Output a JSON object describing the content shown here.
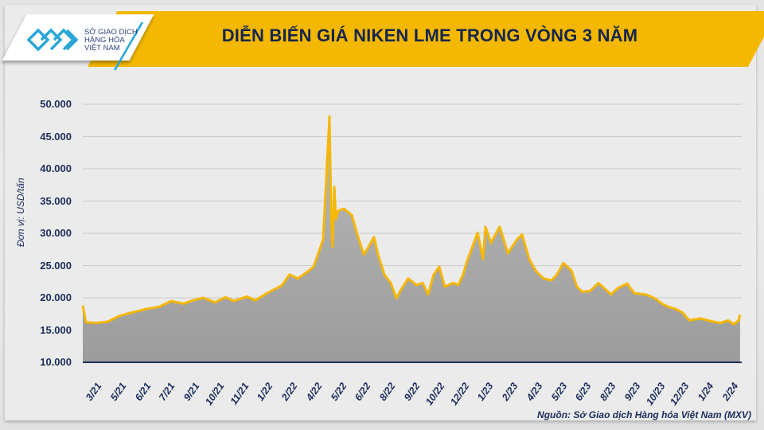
{
  "header": {
    "logo_text": [
      "SỞ GIAO DỊCH",
      "HÀNG HÓA",
      "VIỆT NAM"
    ],
    "title": "DIỄN BIẾN GIÁ NIKEN LME TRONG VÒNG 3 NĂM"
  },
  "source": "Nguồn: Sở Giao dịch Hàng hóa Việt Nam (MXV)",
  "colors": {
    "line": "#F5B700",
    "banner": "#F4B800",
    "text": "#1B2D5C",
    "axis": "#1B2D5C"
  },
  "chart_data": {
    "type": "line",
    "title": "DIỄN BIẾN GIÁ NIKEN LME TRONG VÒNG 3 NĂM",
    "ylabel": "Đơn vị: USD/tấn",
    "xlabel": "",
    "ylim": [
      10000,
      50000
    ],
    "yticks": [
      "10.000",
      "15.000",
      "20.000",
      "25.000",
      "30.000",
      "35.000",
      "40.000",
      "45.000",
      "50.000"
    ],
    "ytick_values": [
      10000,
      15000,
      20000,
      25000,
      30000,
      35000,
      40000,
      45000,
      50000
    ],
    "xticks": [
      "3/21",
      "5/21",
      "6/21",
      "7/21",
      "9/21",
      "10/21",
      "11/21",
      "1/22",
      "2/22",
      "4/22",
      "5/22",
      "6/22",
      "8/22",
      "9/22",
      "10/22",
      "12/22",
      "1/23",
      "2/23",
      "4/23",
      "5/23",
      "6/23",
      "8/23",
      "9/23",
      "10/23",
      "12/23",
      "1/24",
      "2/24"
    ],
    "x_unit": "months since 3/21",
    "x": [
      0,
      0.17,
      0.7,
      1.35,
      2.0,
      2.65,
      3.1,
      3.5,
      4.17,
      4.83,
      5.5,
      5.9,
      6.57,
      7.22,
      7.8,
      8.26,
      8.96,
      9.43,
      10.0,
      10.87,
      11.3,
      11.74,
      12.17,
      12.61,
      13.13,
      13.48,
      13.57,
      13.65,
      13.74,
      13.83,
      13.96,
      14.26,
      14.7,
      15.0,
      15.35,
      15.61,
      15.91,
      16.13,
      16.48,
      16.83,
      17.13,
      17.35,
      17.78,
      18.22,
      18.57,
      18.87,
      19.17,
      19.48,
      19.78,
      20.22,
      20.52,
      20.78,
      20.96,
      21.57,
      21.87,
      22.0,
      22.3,
      22.78,
      23.22,
      23.74,
      24.0,
      24.39,
      24.74,
      25.17,
      25.61,
      25.91,
      26.26,
      26.7,
      27.0,
      27.3,
      27.74,
      28.17,
      28.87,
      29.22,
      29.74,
      30.13,
      30.78,
      31.26,
      31.7,
      32.0,
      32.35,
      32.78,
      33.13,
      33.78,
      34.3,
      34.83,
      35.26,
      35.57,
      35.83,
      35.91
    ],
    "values": [
      18800,
      16200,
      16100,
      16300,
      17200,
      17700,
      18000,
      18300,
      18600,
      19500,
      19100,
      19500,
      20000,
      19300,
      20100,
      19500,
      20200,
      19600,
      20600,
      21900,
      23600,
      23000,
      23800,
      24800,
      29000,
      48100,
      32800,
      27900,
      37200,
      32200,
      33500,
      33800,
      32800,
      29800,
      26700,
      27900,
      29400,
      26700,
      23600,
      22300,
      19900,
      21100,
      23000,
      22000,
      22300,
      20500,
      23600,
      24800,
      21700,
      22300,
      22000,
      23600,
      25400,
      30100,
      26000,
      31000,
      28500,
      31000,
      26900,
      29100,
      29800,
      26000,
      24200,
      23000,
      22700,
      23600,
      25400,
      24200,
      21700,
      20900,
      21100,
      22300,
      20500,
      21500,
      22200,
      20700,
      20500,
      19900,
      19000,
      18600,
      18300,
      17700,
      16500,
      16800,
      16400,
      16100,
      16500,
      15900,
      16500,
      17400
    ],
    "grid": true,
    "legend": "none"
  }
}
